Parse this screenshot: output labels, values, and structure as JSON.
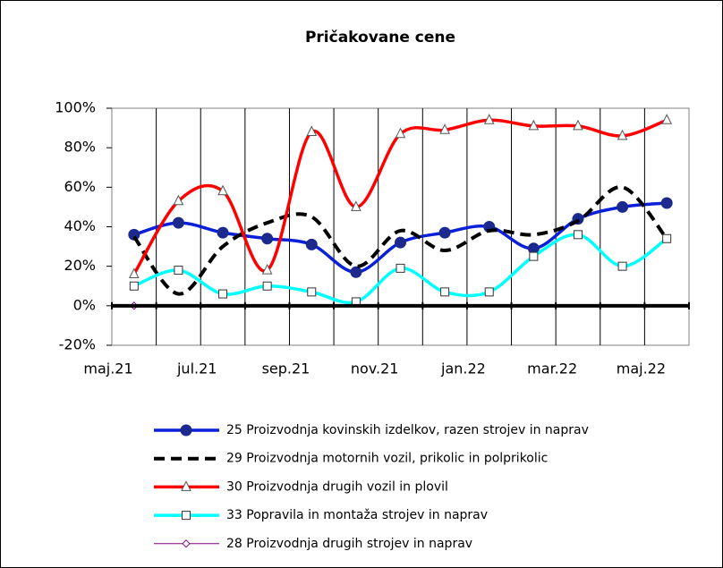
{
  "chart_data": {
    "type": "line",
    "title": "Pričakovane cene",
    "categories": [
      "maj.21",
      null,
      "jul.21",
      null,
      "sep.21",
      null,
      "nov.21",
      null,
      "jan.22",
      null,
      "mar.22",
      null,
      "maj.22"
    ],
    "ylim": [
      -20,
      100
    ],
    "yticks": [
      {
        "value": -20,
        "label": "-20%"
      },
      {
        "value": 0,
        "label": "0%"
      },
      {
        "value": 20,
        "label": "20%"
      },
      {
        "value": 40,
        "label": "40%"
      },
      {
        "value": 60,
        "label": "60%"
      },
      {
        "value": 80,
        "label": "80%"
      },
      {
        "value": 100,
        "label": "100%"
      }
    ],
    "grid": "x",
    "legend": "bottom",
    "series": [
      {
        "name": "25 Proizvodnja kovinskih izdelkov, razen strojev in naprav",
        "color": "#0a1fd8",
        "marker": "circle",
        "dash": false,
        "values": [
          36,
          42,
          37,
          34,
          31,
          17,
          32,
          37,
          40,
          29,
          44,
          50,
          52
        ]
      },
      {
        "name": "29 Proizvodnja motornih vozil, prikolic in polprikolic",
        "color": "#000000",
        "marker": "none",
        "dash": true,
        "values": [
          35,
          6,
          30,
          42,
          45,
          20,
          38,
          28,
          38,
          36,
          43,
          60,
          34
        ]
      },
      {
        "name": "30 Proizvodnja drugih vozil in plovil",
        "color": "#ff0000",
        "marker": "triangle",
        "dash": false,
        "values": [
          16,
          53,
          58,
          18,
          88,
          50,
          87,
          89,
          94,
          91,
          91,
          86,
          94
        ]
      },
      {
        "name": "33 Popravila in montaža strojev in naprav",
        "color": "#00ffff",
        "marker": "square",
        "dash": false,
        "values": [
          10,
          18,
          6,
          10,
          7,
          2,
          19,
          7,
          7,
          25,
          36,
          20,
          34
        ]
      },
      {
        "name": "28 Proizvodnja drugih strojev in naprav",
        "color": "#800080",
        "marker": "diamond",
        "dash": false,
        "values": [
          0,
          null,
          null,
          null,
          null,
          null,
          null,
          null,
          null,
          null,
          null,
          null,
          null
        ]
      }
    ]
  }
}
